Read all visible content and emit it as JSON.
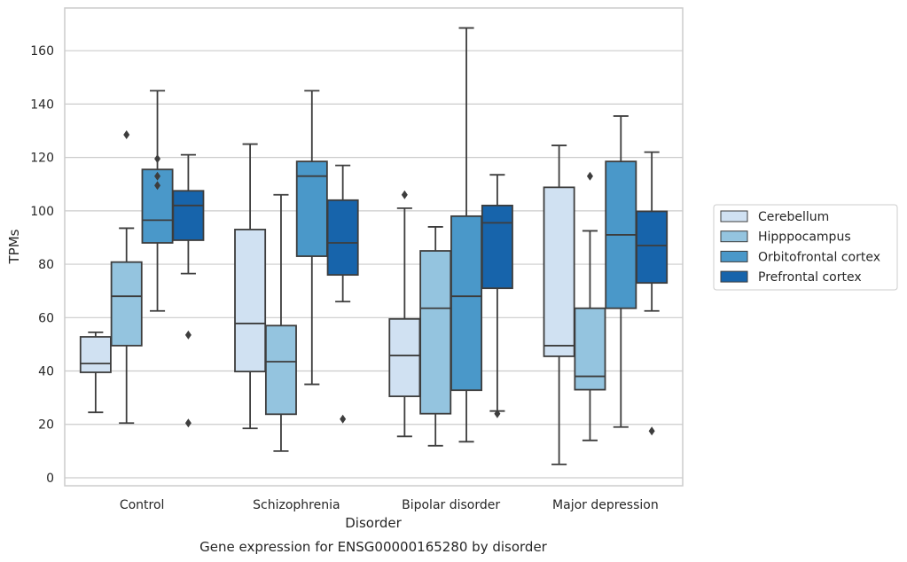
{
  "chart_data": {
    "type": "box",
    "caption": "Gene expression for ENSG00000165280 by disorder",
    "xlabel": "Disorder",
    "ylabel": "TPMs",
    "ylim": [
      -3,
      176
    ],
    "yticks": [
      0,
      20,
      40,
      60,
      80,
      100,
      120,
      140,
      160
    ],
    "grid": "horizontal",
    "legend_position": "right",
    "categories": [
      "Control",
      "Schizophrenia",
      "Bipolar disorder",
      "Major depression"
    ],
    "series": [
      {
        "name": "Cerebellum",
        "color": "#d0e1f2",
        "boxes": [
          {
            "whisker_low": 24.5,
            "q1": 39.5,
            "median": 42.8,
            "q3": 52.8,
            "whisker_high": 54.5,
            "outliers": []
          },
          {
            "whisker_low": 18.5,
            "q1": 39.8,
            "median": 57.8,
            "q3": 93.0,
            "whisker_high": 125.0,
            "outliers": []
          },
          {
            "whisker_low": 15.5,
            "q1": 30.5,
            "median": 45.8,
            "q3": 59.5,
            "whisker_high": 101.0,
            "outliers": [
              106.0
            ]
          },
          {
            "whisker_low": 5.0,
            "q1": 45.5,
            "median": 49.5,
            "q3": 108.8,
            "whisker_high": 124.5,
            "outliers": []
          }
        ]
      },
      {
        "name": "Hipppocampus",
        "color": "#94c4df",
        "boxes": [
          {
            "whisker_low": 20.5,
            "q1": 49.5,
            "median": 68.0,
            "q3": 80.8,
            "whisker_high": 93.5,
            "outliers": [
              128.5
            ]
          },
          {
            "whisker_low": 10.0,
            "q1": 23.8,
            "median": 43.5,
            "q3": 57.0,
            "whisker_high": 106.0,
            "outliers": []
          },
          {
            "whisker_low": 12.0,
            "q1": 24.0,
            "median": 63.5,
            "q3": 85.0,
            "whisker_high": 94.0,
            "outliers": []
          },
          {
            "whisker_low": 14.0,
            "q1": 33.0,
            "median": 38.0,
            "q3": 63.5,
            "whisker_high": 92.5,
            "outliers": [
              113.0
            ]
          }
        ]
      },
      {
        "name": "Orbitofrontal cortex",
        "color": "#4a98c9",
        "boxes": [
          {
            "whisker_low": 62.5,
            "q1": 88.0,
            "median": 96.5,
            "q3": 115.5,
            "whisker_high": 145.0,
            "outliers": [
              119.5,
              113.0,
              109.5
            ]
          },
          {
            "whisker_low": 35.0,
            "q1": 83.0,
            "median": 113.0,
            "q3": 118.5,
            "whisker_high": 145.0,
            "outliers": []
          },
          {
            "whisker_low": 13.5,
            "q1": 32.8,
            "median": 68.0,
            "q3": 98.0,
            "whisker_high": 168.5,
            "outliers": []
          },
          {
            "whisker_low": 19.0,
            "q1": 63.5,
            "median": 91.0,
            "q3": 118.5,
            "whisker_high": 135.5,
            "outliers": []
          }
        ]
      },
      {
        "name": "Prefrontal cortex",
        "color": "#1764ab",
        "boxes": [
          {
            "whisker_low": 76.5,
            "q1": 89.0,
            "median": 102.0,
            "q3": 107.5,
            "whisker_high": 121.0,
            "outliers": [
              53.5,
              20.5
            ]
          },
          {
            "whisker_low": 66.0,
            "q1": 76.0,
            "median": 88.0,
            "q3": 104.0,
            "whisker_high": 117.0,
            "outliers": [
              22.0
            ]
          },
          {
            "whisker_low": 25.0,
            "q1": 71.0,
            "median": 95.5,
            "q3": 102.0,
            "whisker_high": 113.5,
            "outliers": [
              24.0
            ]
          },
          {
            "whisker_low": 62.5,
            "q1": 73.0,
            "median": 87.0,
            "q3": 99.8,
            "whisker_high": 122.0,
            "outliers": [
              17.5
            ]
          }
        ]
      }
    ]
  }
}
